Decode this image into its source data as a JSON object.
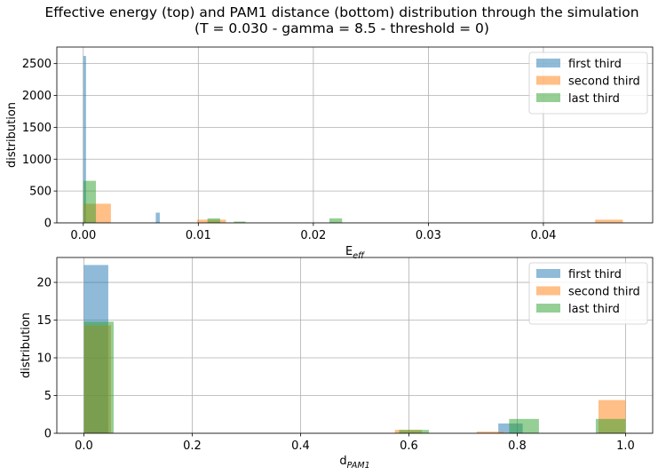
{
  "title_line1": "Effective energy (top) and PAM1 distance (bottom) distribution through the simulation",
  "title_line2": "(T = 0.030 - gamma = 8.5 - threshold = 0)",
  "colors": {
    "first": "#1f77b4",
    "second": "#ff7f0e",
    "last": "#2ca02c",
    "grid": "#b0b0b0"
  },
  "chart_data": [
    {
      "type": "histogram",
      "xlabel_base": "E",
      "xlabel_sub": "eff",
      "ylabel": "distribution",
      "xlim": [
        -0.0023,
        0.0495
      ],
      "ylim": [
        0,
        2760
      ],
      "xticks": [
        0.0,
        0.01,
        0.02,
        0.03,
        0.04
      ],
      "xtick_labels": [
        "0.00",
        "0.01",
        "0.02",
        "0.03",
        "0.04"
      ],
      "yticks": [
        0,
        500,
        1000,
        1500,
        2000,
        2500
      ],
      "grid": true,
      "legend_position": "top-right",
      "series": [
        {
          "name": "first third",
          "bars": [
            {
              "x0": 0.0,
              "x1": 0.00024,
              "y": 2620
            },
            {
              "x0": 0.0063,
              "x1": 0.00665,
              "y": 160
            }
          ]
        },
        {
          "name": "second third",
          "bars": [
            {
              "x0": 0.0,
              "x1": 0.0024,
              "y": 300
            },
            {
              "x0": 0.0099,
              "x1": 0.0124,
              "y": 50
            },
            {
              "x0": 0.0445,
              "x1": 0.0469,
              "y": 50
            }
          ]
        },
        {
          "name": "last third",
          "bars": [
            {
              "x0": 0.0,
              "x1": 0.0011,
              "y": 660
            },
            {
              "x0": 0.0108,
              "x1": 0.0119,
              "y": 70
            },
            {
              "x0": 0.0131,
              "x1": 0.0141,
              "y": 20
            },
            {
              "x0": 0.0214,
              "x1": 0.0225,
              "y": 70
            }
          ]
        }
      ]
    },
    {
      "type": "histogram",
      "xlabel_base": "d",
      "xlabel_sub": "PAM1",
      "ylabel": "distribution",
      "xlim": [
        -0.05,
        1.05
      ],
      "ylim": [
        0,
        23.3
      ],
      "xticks": [
        0.0,
        0.2,
        0.4,
        0.6,
        0.8,
        1.0
      ],
      "xtick_labels": [
        "0.0",
        "0.2",
        "0.4",
        "0.6",
        "0.8",
        "1.0"
      ],
      "yticks": [
        0,
        5,
        10,
        15,
        20
      ],
      "grid": true,
      "legend_position": "top-right",
      "series": [
        {
          "name": "first third",
          "bars": [
            {
              "x0": 0.0,
              "x1": 0.045,
              "y": 22.3
            },
            {
              "x0": 0.765,
              "x1": 0.81,
              "y": 1.3
            }
          ]
        },
        {
          "name": "second third",
          "bars": [
            {
              "x0": 0.0,
              "x1": 0.05,
              "y": 14.3
            },
            {
              "x0": 0.574,
              "x1": 0.624,
              "y": 0.45
            },
            {
              "x0": 0.725,
              "x1": 0.775,
              "y": 0.22
            },
            {
              "x0": 0.95,
              "x1": 1.0,
              "y": 4.4
            }
          ]
        },
        {
          "name": "last third",
          "bars": [
            {
              "x0": 0.0,
              "x1": 0.055,
              "y": 14.8
            },
            {
              "x0": 0.582,
              "x1": 0.637,
              "y": 0.45
            },
            {
              "x0": 0.785,
              "x1": 0.84,
              "y": 1.9
            },
            {
              "x0": 0.945,
              "x1": 1.0,
              "y": 1.9
            }
          ]
        }
      ]
    }
  ]
}
